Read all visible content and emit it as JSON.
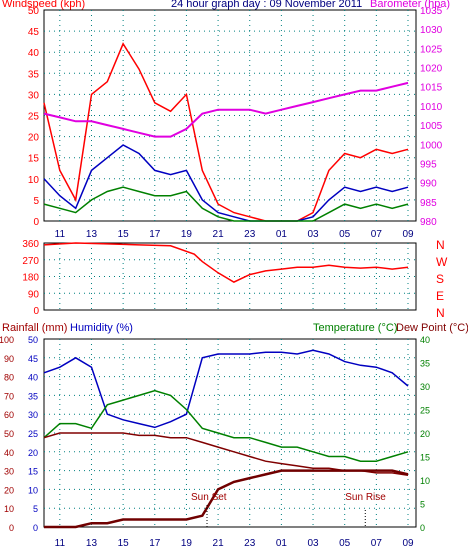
{
  "header": {
    "windspeed_label": "Windspeed (kph)",
    "title": "24 hour graph day : 09 November 2011",
    "barometer_label": "Barometer (hpa)"
  },
  "colors": {
    "red": "#ff0000",
    "green": "#008000",
    "blue": "#0000c0",
    "magenta": "#e000e0",
    "maroon": "#800000",
    "grid": "#008080",
    "dark_red": "#a00000"
  },
  "x_ticks": [
    "11",
    "13",
    "15",
    "17",
    "19",
    "21",
    "23",
    "01",
    "03",
    "05",
    "07",
    "09"
  ],
  "chart_data": [
    {
      "type": "line",
      "name": "wind-panel",
      "left_ticks": [
        "0",
        "5",
        "10",
        "15",
        "20",
        "25",
        "30",
        "35",
        "40",
        "45",
        "50"
      ],
      "right_ticks": [
        "980",
        "985",
        "990",
        "995",
        "1000",
        "1005",
        "1010",
        "1015",
        "1020",
        "1025",
        "1030",
        "1035"
      ],
      "ylim": [
        0,
        50
      ],
      "ylim_right": [
        980,
        1035
      ],
      "x_hours": [
        10,
        11,
        12,
        13,
        14,
        15,
        16,
        17,
        18,
        19,
        20,
        21,
        22,
        23,
        24,
        25,
        26,
        27,
        28,
        29,
        30,
        31,
        32,
        33
      ],
      "series": [
        {
          "key": "gust",
          "values": [
            28,
            12,
            5,
            30,
            33,
            42,
            36,
            28,
            26,
            30,
            12,
            4,
            2,
            1,
            0,
            0,
            0,
            2,
            12,
            16,
            15,
            17,
            16,
            17
          ]
        },
        {
          "key": "speed",
          "values": [
            10,
            6,
            3,
            12,
            15,
            18,
            16,
            12,
            11,
            12,
            5,
            2,
            1,
            0,
            0,
            0,
            0,
            1,
            5,
            8,
            7,
            8,
            7,
            8
          ]
        },
        {
          "key": "direction_avg",
          "values": [
            4,
            3,
            2,
            5,
            7,
            8,
            7,
            6,
            6,
            7,
            3,
            1,
            0,
            0,
            0,
            0,
            0,
            0,
            2,
            4,
            3,
            4,
            3,
            4
          ]
        },
        {
          "key": "barometer",
          "values": [
            1008,
            1007,
            1006,
            1006,
            1005,
            1004,
            1003,
            1002,
            1002,
            1004,
            1008,
            1009,
            1009,
            1009,
            1008,
            1009,
            1010,
            1011,
            1012,
            1013,
            1014,
            1014,
            1015,
            1016
          ]
        }
      ]
    },
    {
      "type": "scatter",
      "name": "direction-panel",
      "left_ticks": [
        "0",
        "90",
        "180",
        "270",
        "360"
      ],
      "right_labels": [
        "N",
        "W",
        "S",
        "E",
        "N"
      ],
      "ylim": [
        0,
        360
      ],
      "x_hours": [
        10,
        12,
        14,
        16,
        18,
        19.5,
        20,
        21,
        22,
        23,
        24,
        25,
        26,
        27,
        28,
        29,
        30,
        31,
        32,
        33
      ],
      "values": [
        350,
        360,
        355,
        350,
        345,
        300,
        260,
        200,
        150,
        190,
        210,
        220,
        230,
        230,
        240,
        230,
        225,
        230,
        220,
        230
      ]
    },
    {
      "type": "line",
      "name": "weather-panel",
      "rain_label": "Rainfall (mm)",
      "humidity_label": "Humidity (%)",
      "temperature_label": "Temperature (°C)",
      "dewpoint_label": "Dew Point (°C)",
      "sunset_label": "Sun Set",
      "sunrise_label": "Sun Rise",
      "sunset_hour": 20.3,
      "sunrise_hour": 30.3,
      "left_ticks": [
        "0",
        "10",
        "20",
        "30",
        "40",
        "50",
        "60",
        "70",
        "80",
        "90",
        "100"
      ],
      "mid_ticks": [
        "0",
        "5",
        "10",
        "15",
        "20",
        "25",
        "30",
        "35",
        "40",
        "45",
        "50"
      ],
      "right_ticks": [
        "0",
        "5",
        "10",
        "15",
        "20",
        "25",
        "30",
        "35",
        "40"
      ],
      "ylim": [
        0,
        100
      ],
      "ylim_right": [
        0,
        40
      ],
      "x_hours": [
        10,
        11,
        12,
        13,
        14,
        15,
        16,
        17,
        18,
        19,
        20,
        21,
        22,
        23,
        24,
        25,
        26,
        27,
        28,
        29,
        30,
        31,
        32,
        33
      ],
      "series": [
        {
          "key": "humidity",
          "values": [
            82,
            85,
            90,
            85,
            60,
            57,
            55,
            53,
            56,
            60,
            90,
            92,
            92,
            92,
            93,
            93,
            92,
            94,
            92,
            88,
            86,
            85,
            82,
            75
          ]
        },
        {
          "key": "temperature",
          "values": [
            19,
            22,
            22,
            21,
            26,
            27,
            28,
            29,
            28,
            25,
            21,
            20,
            19,
            19,
            18,
            17,
            17,
            16,
            15,
            15,
            14,
            14,
            15,
            16
          ]
        },
        {
          "key": "dewpoint",
          "values": [
            19,
            20,
            20,
            20,
            20,
            20,
            19.5,
            19.5,
            19,
            19,
            18,
            17,
            16,
            15,
            14,
            13.5,
            13,
            12.5,
            12.5,
            12,
            12,
            11.5,
            11.5,
            11
          ]
        },
        {
          "key": "rainfall",
          "values": [
            0,
            0,
            0,
            1,
            1,
            2,
            2,
            2,
            2,
            2,
            3,
            10,
            12,
            13,
            14,
            15,
            15,
            15,
            15,
            15,
            15,
            15,
            15,
            14
          ]
        }
      ]
    }
  ]
}
